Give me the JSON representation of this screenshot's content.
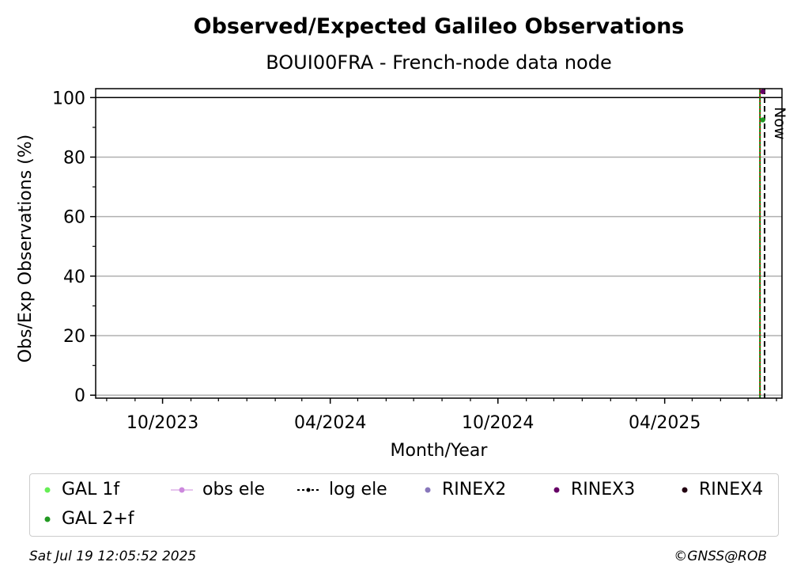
{
  "chart_data": {
    "type": "scatter",
    "title": "Observed/Expected Galileo Observations",
    "subtitle": "BOUI00FRA - French-node data node",
    "xlabel": "Month/Year",
    "ylabel": "Obs/Exp Observations (%)",
    "x_range": [
      "2023-07-20",
      "2025-08-07"
    ],
    "ylim": [
      -1,
      103
    ],
    "y_ticks": [
      0,
      20,
      40,
      60,
      80,
      100
    ],
    "x_ticks": [
      {
        "date": "2023-10-01",
        "label": "10/2023"
      },
      {
        "date": "2024-04-01",
        "label": "04/2024"
      },
      {
        "date": "2024-10-01",
        "label": "10/2024"
      },
      {
        "date": "2025-04-01",
        "label": "04/2025"
      }
    ],
    "x_minor_ticks": [
      "2023-08-01",
      "2023-09-01",
      "2023-11-01",
      "2023-12-01",
      "2024-01-01",
      "2024-02-01",
      "2024-03-01",
      "2024-05-01",
      "2024-06-01",
      "2024-07-01",
      "2024-08-01",
      "2024-09-01",
      "2024-11-01",
      "2024-12-01",
      "2025-01-01",
      "2025-02-01",
      "2025-03-01",
      "2025-05-01",
      "2025-06-01",
      "2025-07-01",
      "2025-08-01"
    ],
    "y_minor_ticks": [
      10,
      30,
      50,
      70,
      90
    ],
    "grid": "y-major",
    "reference_line": 100,
    "series": [
      {
        "name": "GAL 1f",
        "color": "#66ee55",
        "marker": "dot",
        "points": []
      },
      {
        "name": "obs ele",
        "color": "#cc88dd",
        "marker": "dot-line",
        "points": []
      },
      {
        "name": "log ele",
        "color": "#000000",
        "marker": "dashed-line-dot",
        "points": []
      },
      {
        "name": "RINEX2",
        "color": "#8877bb",
        "marker": "dot",
        "points": []
      },
      {
        "name": "RINEX3",
        "color": "#660066",
        "marker": "dot",
        "points": [
          {
            "x": "2025-07-17",
            "y": 102
          }
        ]
      },
      {
        "name": "RINEX4",
        "color": "#220011",
        "marker": "dot",
        "points": []
      },
      {
        "name": "GAL 2+f",
        "color": "#229922",
        "marker": "dot",
        "points": [
          {
            "x": "2025-07-17",
            "y": 92.5
          }
        ]
      }
    ],
    "vertical_markers": [
      {
        "date": "2025-07-14",
        "color": "#008800",
        "style": "solid"
      },
      {
        "date": "2025-07-14",
        "color": "#dd0000",
        "style": "dotted"
      },
      {
        "date": "2025-07-19",
        "color": "#000000",
        "style": "dashed",
        "label": "Now"
      }
    ]
  },
  "footer": {
    "timestamp": "Sat Jul 19 12:05:52 2025",
    "copyright": "©GNSS@ROB"
  }
}
